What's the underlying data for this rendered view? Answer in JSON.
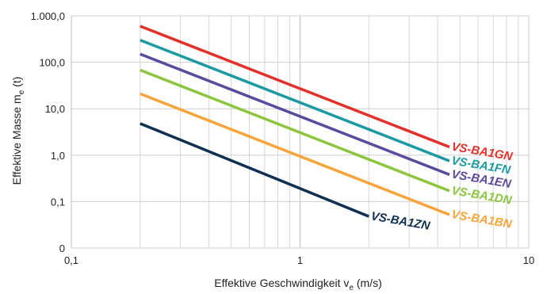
{
  "chart_data": {
    "type": "line",
    "x_scale": "log",
    "y_scale": "log",
    "xlim": [
      0.1,
      10
    ],
    "ylim": [
      0.01,
      1000
    ],
    "grid": true,
    "xlabel": {
      "main": "Effektive Geschwindigkeit v",
      "sub": "e",
      "unit": " (m/s)"
    },
    "ylabel": {
      "main": "Effektive Masse m",
      "sub": "e",
      "unit": " (t)"
    },
    "x_ticks": [
      {
        "value": 0.1,
        "label": "0,1"
      },
      {
        "value": 1,
        "label": "1"
      },
      {
        "value": 10,
        "label": "10"
      }
    ],
    "y_ticks": [
      {
        "value": 0.01,
        "label": "0"
      },
      {
        "value": 0.1,
        "label": "0,1"
      },
      {
        "value": 1,
        "label": "1,0"
      },
      {
        "value": 10,
        "label": "10,0"
      },
      {
        "value": 100,
        "label": "100,0"
      },
      {
        "value": 1000,
        "label": "1.000,0"
      }
    ],
    "series": [
      {
        "name": "VS-BA1GN",
        "color": "#e2312b",
        "x": [
          0.2,
          4.5
        ],
        "y": [
          600,
          1.5
        ]
      },
      {
        "name": "VS-BA1FN",
        "color": "#1c9aa3",
        "x": [
          0.2,
          4.5
        ],
        "y": [
          300,
          0.75
        ]
      },
      {
        "name": "VS-BA1EN",
        "color": "#5c4a9c",
        "x": [
          0.2,
          4.5
        ],
        "y": [
          150,
          0.38
        ]
      },
      {
        "name": "VS-BA1DN",
        "color": "#8cc63f",
        "x": [
          0.2,
          4.5
        ],
        "y": [
          68,
          0.17
        ]
      },
      {
        "name": "VS-BA1BN",
        "color": "#f7a43a",
        "x": [
          0.2,
          4.5
        ],
        "y": [
          21,
          0.052
        ]
      },
      {
        "name": "VS-BA1ZN",
        "color": "#0f3050",
        "x": [
          0.2,
          2.0
        ],
        "y": [
          4.8,
          0.048
        ]
      }
    ]
  }
}
